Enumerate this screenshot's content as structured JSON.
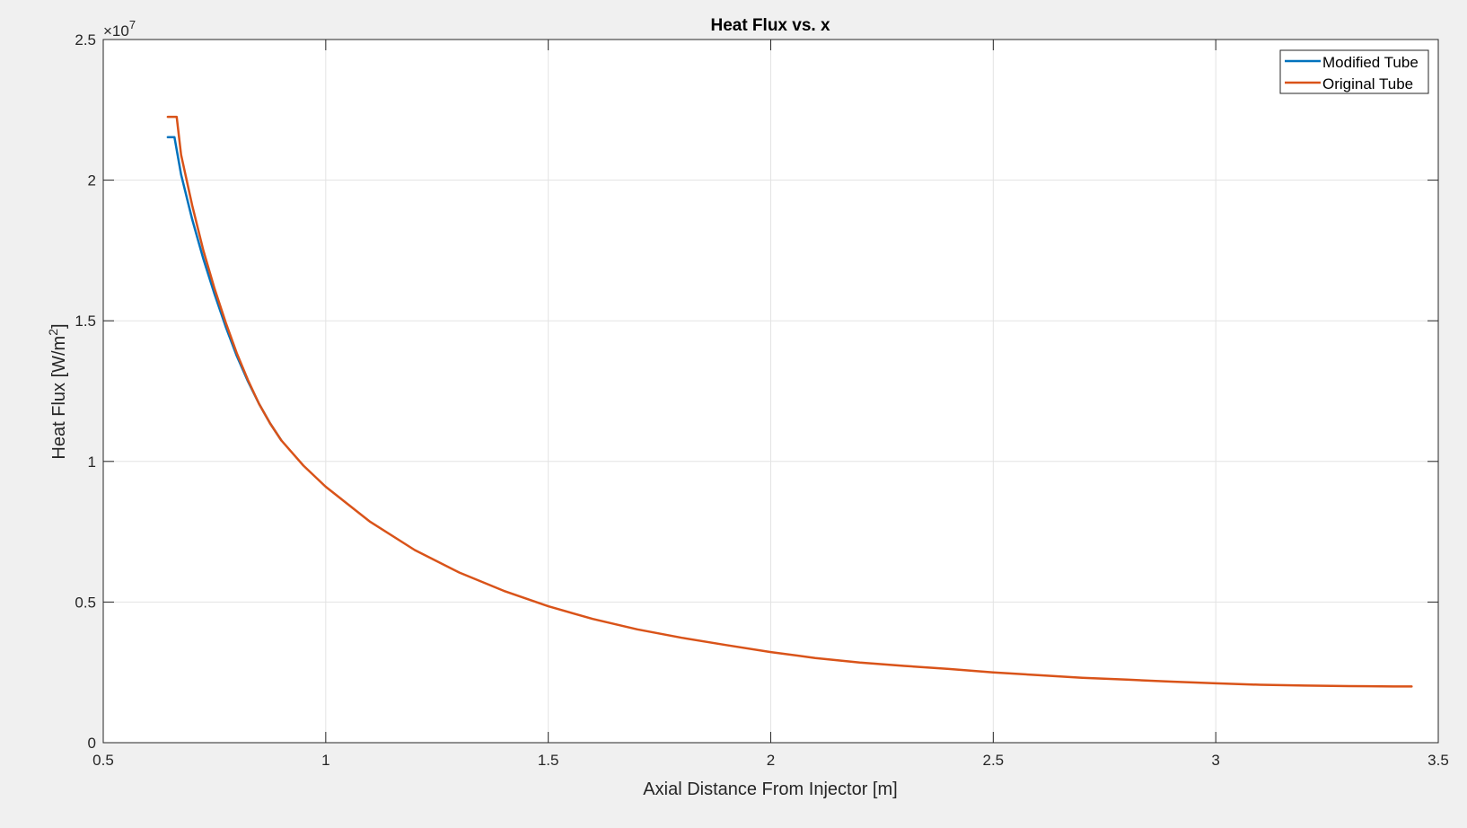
{
  "chart_data": {
    "type": "line",
    "title": "Heat Flux vs. x",
    "xlabel": "Axial Distance From Injector [m]",
    "ylabel": "Heat Flux [W/m^2]",
    "ylabel_main": "Heat Flux [W/m",
    "ylabel_sup": "2",
    "ylabel_end": "]",
    "exponent_prefix": "×10",
    "exponent_power": "7",
    "xlim": [
      0.5,
      3.5
    ],
    "ylim": [
      0,
      2.5
    ],
    "xticks": [
      0.5,
      1,
      1.5,
      2,
      2.5,
      3,
      3.5
    ],
    "xtick_labels": [
      "0.5",
      "1",
      "1.5",
      "2",
      "2.5",
      "3",
      "3.5"
    ],
    "yticks": [
      0,
      0.5,
      1,
      1.5,
      2,
      2.5
    ],
    "ytick_labels": [
      "0",
      "0.5",
      "1",
      "1.5",
      "2",
      "2.5"
    ],
    "grid": true,
    "legend_position": "top-right",
    "series": [
      {
        "name": "Modified Tube",
        "color": "#0072BD",
        "x": [
          0.645,
          0.66,
          0.675,
          0.7,
          0.725,
          0.75,
          0.775,
          0.8,
          0.825,
          0.85,
          0.875,
          0.9
        ],
        "y": [
          2.153,
          2.153,
          2.02,
          1.86,
          1.72,
          1.595,
          1.48,
          1.375,
          1.285,
          1.205,
          1.135,
          1.075
        ]
      },
      {
        "name": "Original Tube",
        "color": "#D95319",
        "x": [
          0.645,
          0.665,
          0.675,
          0.7,
          0.725,
          0.75,
          0.775,
          0.8,
          0.825,
          0.85,
          0.875,
          0.9,
          0.95,
          1.0,
          1.1,
          1.2,
          1.3,
          1.4,
          1.5,
          1.6,
          1.7,
          1.8,
          1.9,
          2.0,
          2.1,
          2.2,
          2.3,
          2.4,
          2.5,
          2.6,
          2.7,
          2.8,
          2.9,
          3.0,
          3.1,
          3.2,
          3.3,
          3.4,
          3.44
        ],
        "y": [
          2.225,
          2.225,
          2.09,
          1.91,
          1.75,
          1.615,
          1.495,
          1.385,
          1.29,
          1.205,
          1.135,
          1.075,
          0.985,
          0.91,
          0.785,
          0.685,
          0.605,
          0.54,
          0.485,
          0.44,
          0.403,
          0.373,
          0.347,
          0.322,
          0.301,
          0.285,
          0.273,
          0.262,
          0.25,
          0.24,
          0.231,
          0.224,
          0.217,
          0.211,
          0.206,
          0.203,
          0.201,
          0.2,
          0.2
        ]
      }
    ]
  }
}
